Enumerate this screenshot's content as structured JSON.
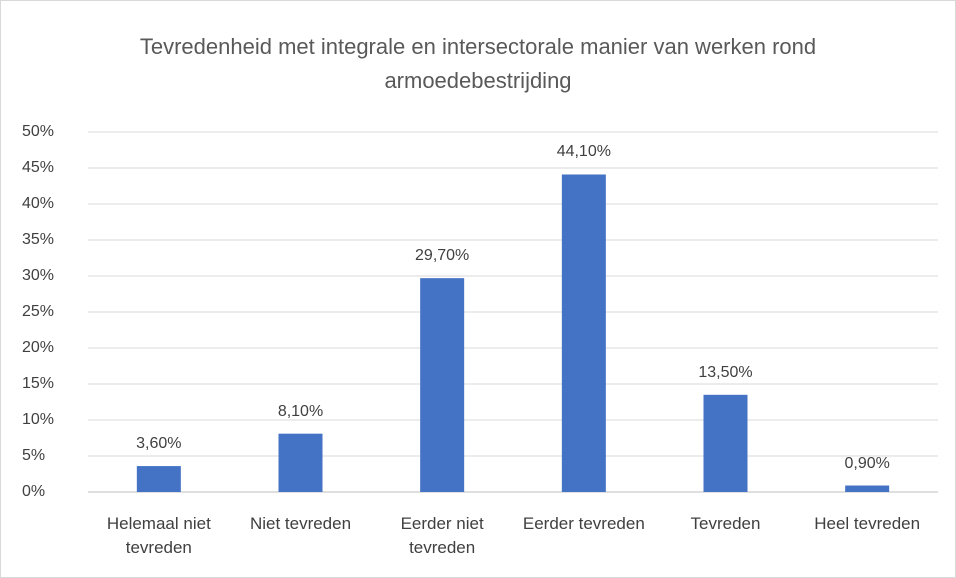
{
  "chart_data": {
    "type": "bar",
    "title": "Tevredenheid met integrale en intersectorale manier van werken rond armoedebestrijding",
    "categories": [
      "Helemaal niet tevreden",
      "Niet tevreden",
      "Eerder niet tevreden",
      "Eerder tevreden",
      "Tevreden",
      "Heel tevreden"
    ],
    "values": [
      3.6,
      8.1,
      29.7,
      44.1,
      13.5,
      0.9
    ],
    "value_labels": [
      "3,60%",
      "8,10%",
      "29,70%",
      "44,10%",
      "13,50%",
      "0,90%"
    ],
    "color": "#4472c4",
    "ylim": [
      0,
      50
    ],
    "yticks": [
      {
        "value": 0,
        "label": "0%"
      },
      {
        "value": 5,
        "label": "5%"
      },
      {
        "value": 10,
        "label": "10%"
      },
      {
        "value": 15,
        "label": "15%"
      },
      {
        "value": 20,
        "label": "20%"
      },
      {
        "value": 25,
        "label": "25%"
      },
      {
        "value": 30,
        "label": "30%"
      },
      {
        "value": 35,
        "label": "35%"
      },
      {
        "value": 40,
        "label": "40%"
      },
      {
        "value": 45,
        "label": "45%"
      },
      {
        "value": 50,
        "label": "50%"
      }
    ],
    "grid": true
  }
}
